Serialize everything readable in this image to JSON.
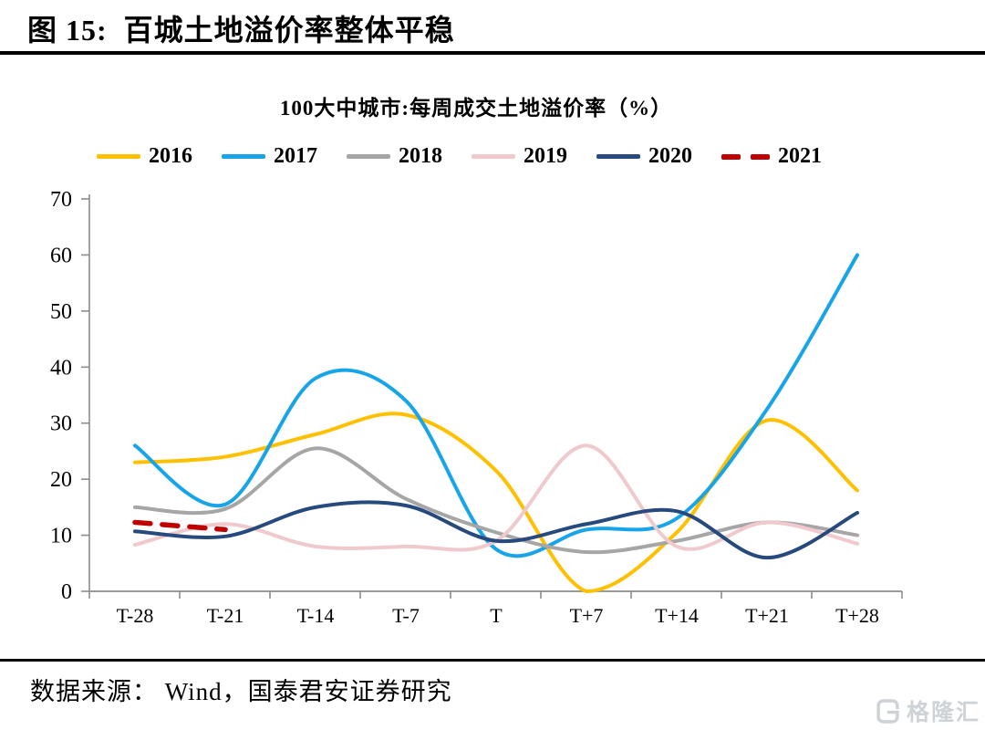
{
  "header": {
    "title": "图 15:  百城土地溢价率整体平稳"
  },
  "chart_data": {
    "type": "line",
    "title": "100大中城市:每周成交土地溢价率（%）",
    "categories": [
      "T-28",
      "T-21",
      "T-14",
      "T-7",
      "T",
      "T+7",
      "T+14",
      "T+21",
      "T+28"
    ],
    "xlabel": "",
    "ylabel": "",
    "ylim": [
      0,
      70
    ],
    "yticks": [
      0,
      10,
      20,
      30,
      40,
      50,
      60,
      70
    ],
    "grid": false,
    "legend_position": "top",
    "line_smoothing": true,
    "series": [
      {
        "name": "2016",
        "color": "#FFC000",
        "dashed": false,
        "values": [
          23,
          24,
          28,
          31.5,
          21.5,
          0,
          10.5,
          30.5,
          18
        ]
      },
      {
        "name": "2017",
        "color": "#17A4E8",
        "dashed": false,
        "values": [
          26,
          15.5,
          38,
          34,
          7.5,
          11,
          13,
          32.5,
          60
        ]
      },
      {
        "name": "2018",
        "color": "#A6A6A6",
        "dashed": false,
        "values": [
          15,
          14.7,
          25.5,
          16.5,
          10.5,
          7,
          9,
          12.3,
          10
        ]
      },
      {
        "name": "2019",
        "color": "#EFC9CB",
        "dashed": false,
        "values": [
          8.3,
          12,
          8,
          8,
          9,
          26,
          8,
          12.3,
          8.5
        ]
      },
      {
        "name": "2020",
        "color": "#264A7E",
        "dashed": false,
        "values": [
          10.7,
          9.8,
          15,
          15.3,
          9,
          12,
          14.3,
          6,
          14
        ]
      },
      {
        "name": "2021",
        "color": "#C00000",
        "dashed": true,
        "values": [
          12.3,
          11,
          null,
          null,
          null,
          null,
          null,
          null,
          null
        ]
      }
    ]
  },
  "footer": {
    "source": "数据来源： Wind，国泰君安证券研究"
  },
  "watermark": {
    "text": "格隆汇"
  }
}
